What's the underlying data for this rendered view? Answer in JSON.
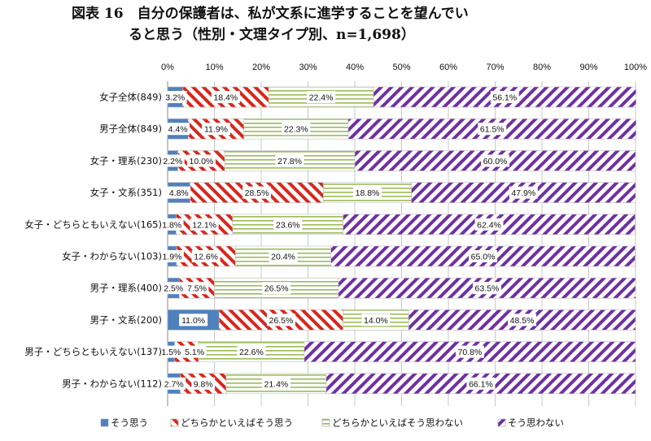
{
  "title": {
    "line1": "図表 16　自分の保護者は、私が文系に進学することを望んでい",
    "line2": "ると思う（性別・文理タイプ別、n=1,698）"
  },
  "colors": {
    "sou_omou": "#4f81bd",
    "dochiraka_sou": "#d9261c",
    "dochiraka_omowanai": "#9bbb59",
    "sou_omowanai": "#7030a0",
    "axis": "#888888",
    "grid": "#c8c8c8",
    "text": "#111111"
  },
  "chart_data": {
    "type": "bar",
    "orientation": "horizontal",
    "stacked": true,
    "percent_stacked": true,
    "x_ticks": [
      "0%",
      "10%",
      "20%",
      "30%",
      "40%",
      "50%",
      "60%",
      "70%",
      "80%",
      "90%",
      "100%"
    ],
    "xlim": [
      0,
      100
    ],
    "grid": true,
    "legend_position": "bottom",
    "categories": [
      "女子全体(849)",
      "男子全体(849)",
      "女子・理系(230)",
      "女子・文系(351)",
      "女子・どちらともいえない(165)",
      "女子・わからない(103)",
      "男子・理系(400)",
      "男子・文系(200)",
      "男子・どちらともいえない(137)",
      "男子・わからない(112)"
    ],
    "series": [
      {
        "name": "そう思う",
        "values": [
          3.2,
          4.4,
          2.2,
          4.8,
          1.8,
          1.9,
          2.5,
          11.0,
          1.5,
          2.7
        ],
        "labels": [
          "3.2%",
          "4.4%",
          "2.2%",
          "4.8%",
          "1.8%",
          "1.9%",
          "2.5%",
          "11.0%",
          "1.5%",
          "2.7%"
        ]
      },
      {
        "name": "どちらかといえばそう思う",
        "values": [
          18.4,
          11.9,
          10.0,
          28.5,
          12.1,
          12.6,
          7.5,
          26.5,
          5.1,
          9.8
        ],
        "labels": [
          "18.4%",
          "11.9%",
          "10.0%",
          "28.5%",
          "12.1%",
          "12.6%",
          "7.5%",
          "26.5%",
          "5.1%",
          "9.8%"
        ]
      },
      {
        "name": "どちらかといえばそう思わない",
        "values": [
          22.4,
          22.3,
          27.8,
          18.8,
          23.6,
          20.4,
          26.5,
          14.0,
          22.6,
          21.4
        ],
        "labels": [
          "22.4%",
          "22.3%",
          "27.8%",
          "18.8%",
          "23.6%",
          "20.4%",
          "26.5%",
          "14.0%",
          "22.6%",
          "21.4%"
        ]
      },
      {
        "name": "そう思わない",
        "values": [
          56.1,
          61.5,
          60.0,
          47.9,
          62.4,
          65.0,
          63.5,
          48.5,
          70.8,
          66.1
        ],
        "labels": [
          "56.1%",
          "61.5%",
          "60.0%",
          "47.9%",
          "62.4%",
          "65.0%",
          "63.5%",
          "48.5%",
          "70.8%",
          "66.1%"
        ]
      }
    ]
  }
}
